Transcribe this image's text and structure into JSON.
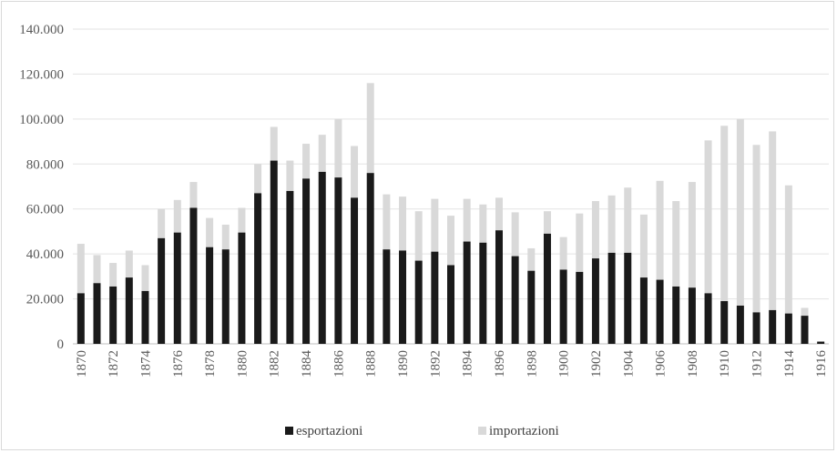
{
  "chart_data": {
    "type": "bar",
    "stacked": true,
    "categories": [
      "1870",
      "1871",
      "1872",
      "1873",
      "1874",
      "1875",
      "1876",
      "1877",
      "1878",
      "1879",
      "1880",
      "1881",
      "1882",
      "1883",
      "1884",
      "1885",
      "1886",
      "1887",
      "1888",
      "1889",
      "1890",
      "1891",
      "1892",
      "1893",
      "1894",
      "1895",
      "1896",
      "1897",
      "1898",
      "1899",
      "1900",
      "1901",
      "1902",
      "1903",
      "1904",
      "1905",
      "1906",
      "1907",
      "1908",
      "1909",
      "1910",
      "1911",
      "1912",
      "1913",
      "1914",
      "1915",
      "1916"
    ],
    "x_tick_labels": [
      "1870",
      "1872",
      "1874",
      "1876",
      "1878",
      "1880",
      "1882",
      "1884",
      "1886",
      "1888",
      "1890",
      "1892",
      "1894",
      "1896",
      "1898",
      "1900",
      "1902",
      "1904",
      "1906",
      "1908",
      "1910",
      "1912",
      "1914",
      "1916"
    ],
    "y_tick_labels": [
      "0",
      "20.000",
      "40.000",
      "60.000",
      "80.000",
      "100.000",
      "120.000",
      "140.000"
    ],
    "ylim": [
      0,
      140000
    ],
    "y_tick_step": 20000,
    "grid": true,
    "legend_position": "bottom",
    "title": "",
    "xlabel": "",
    "ylabel": "",
    "series": [
      {
        "name": "esportazioni",
        "color": "#1a1a1a",
        "values": [
          22500,
          27000,
          25500,
          29500,
          23500,
          47000,
          49500,
          60500,
          43000,
          42000,
          49500,
          67000,
          81500,
          68000,
          73500,
          76500,
          74000,
          65000,
          76000,
          42000,
          41500,
          37000,
          41000,
          35000,
          45500,
          45000,
          50500,
          39000,
          32500,
          49000,
          33000,
          32000,
          38000,
          40500,
          40500,
          29500,
          28500,
          25500,
          25000,
          22500,
          19000,
          17000,
          14000,
          15000,
          13500,
          12500,
          1000
        ]
      },
      {
        "name": "importazioni",
        "color": "#d9d9d9",
        "values": [
          22000,
          12500,
          10500,
          12000,
          11500,
          13000,
          14500,
          11500,
          13000,
          11000,
          11000,
          13000,
          15000,
          13500,
          15500,
          16500,
          26000,
          23000,
          40000,
          24500,
          24000,
          22000,
          23500,
          22000,
          19000,
          17000,
          14500,
          19500,
          10000,
          10000,
          14500,
          26000,
          25500,
          25500,
          29000,
          28000,
          44000,
          38000,
          47000,
          68000,
          78000,
          83000,
          74500,
          79500,
          57000,
          3500,
          0
        ]
      }
    ]
  }
}
